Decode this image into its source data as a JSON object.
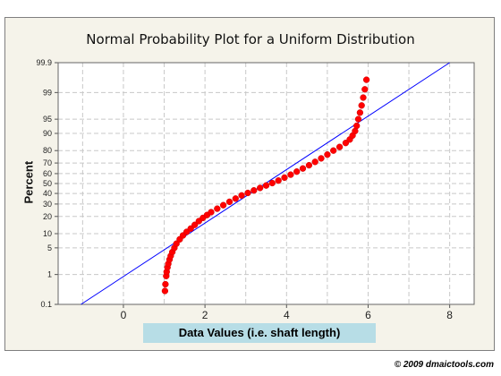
{
  "chart_data": {
    "type": "scatter",
    "title": "Normal Probability Plot for a Uniform Distribution",
    "xlabel": "Data Values (i.e. shaft length)",
    "ylabel": "Percent",
    "xlim": [
      -1.6,
      8.6
    ],
    "x_ticks": [
      0,
      2,
      4,
      6,
      8
    ],
    "y_scale": "normal-probability",
    "ylim_percent": [
      0.1,
      99.9
    ],
    "y_ticks": [
      0.1,
      1,
      5,
      10,
      20,
      30,
      40,
      50,
      60,
      70,
      80,
      90,
      95,
      99,
      99.9
    ],
    "y_tick_labels": [
      "0.1",
      "1",
      "5",
      "10",
      "20",
      "30",
      "40",
      "50",
      "60",
      "70",
      "80",
      "90",
      "95",
      "99",
      "99.9"
    ],
    "grid": true,
    "series": [
      {
        "type": "scatter",
        "color": "#ff0000",
        "points": [
          [
            1.02,
            0.3
          ],
          [
            1.03,
            0.5
          ],
          [
            1.05,
            0.9
          ],
          [
            1.06,
            1.2
          ],
          [
            1.08,
            1.6
          ],
          [
            1.1,
            2.0
          ],
          [
            1.13,
            2.6
          ],
          [
            1.16,
            3.2
          ],
          [
            1.2,
            4.0
          ],
          [
            1.25,
            5.0
          ],
          [
            1.3,
            6.2
          ],
          [
            1.38,
            7.7
          ],
          [
            1.46,
            9.2
          ],
          [
            1.55,
            10.8
          ],
          [
            1.65,
            12.5
          ],
          [
            1.75,
            14.5
          ],
          [
            1.85,
            16.8
          ],
          [
            1.95,
            19.0
          ],
          [
            2.05,
            21.0
          ],
          [
            2.15,
            23.2
          ],
          [
            2.3,
            26.0
          ],
          [
            2.45,
            29.0
          ],
          [
            2.6,
            32.0
          ],
          [
            2.75,
            35.0
          ],
          [
            2.9,
            38.0
          ],
          [
            3.05,
            40.5
          ],
          [
            3.2,
            43.0
          ],
          [
            3.35,
            45.5
          ],
          [
            3.5,
            48.0
          ],
          [
            3.65,
            50.5
          ],
          [
            3.8,
            53.0
          ],
          [
            3.95,
            56.0
          ],
          [
            4.1,
            59.0
          ],
          [
            4.25,
            62.0
          ],
          [
            4.4,
            65.0
          ],
          [
            4.55,
            68.0
          ],
          [
            4.7,
            71.0
          ],
          [
            4.85,
            74.0
          ],
          [
            5.0,
            77.0
          ],
          [
            5.15,
            80.0
          ],
          [
            5.3,
            82.5
          ],
          [
            5.45,
            85.0
          ],
          [
            5.55,
            87.0
          ],
          [
            5.62,
            89.0
          ],
          [
            5.68,
            91.0
          ],
          [
            5.72,
            93.0
          ],
          [
            5.76,
            95.0
          ],
          [
            5.8,
            96.5
          ],
          [
            5.84,
            97.7
          ],
          [
            5.88,
            98.6
          ],
          [
            5.92,
            99.2
          ],
          [
            5.96,
            99.6
          ]
        ]
      },
      {
        "type": "line",
        "color": "#0000ff",
        "points": [
          [
            -1.04,
            0.1
          ],
          [
            8.0,
            99.9
          ]
        ]
      }
    ]
  },
  "chart_title": "Normal Probability Plot for a Uniform Distribution",
  "y_axis_label": "Percent",
  "x_axis_label": "Data Values (i.e. shaft length)",
  "copyright": "© 2009 dmaictools.com",
  "colors": {
    "plot_bg": "#f5f3ea",
    "grid": "#c8c8c8",
    "points": "#ff0000",
    "fit_line": "#0000ff",
    "xlabel_bg": "#b7dde6"
  }
}
